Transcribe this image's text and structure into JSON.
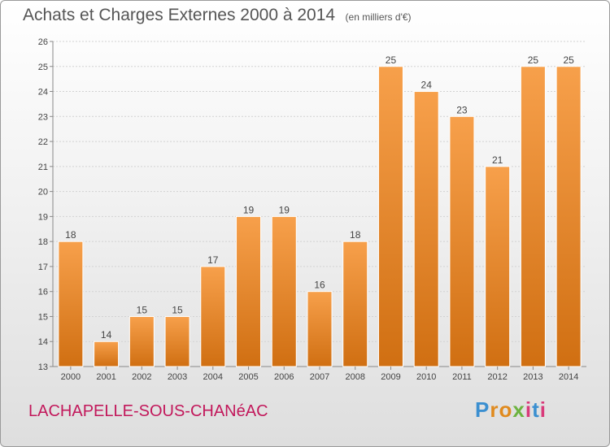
{
  "header": {
    "title": "Achats et Charges Externes 2000 à 2014",
    "subtitle": "(en milliers d'€)"
  },
  "footer": {
    "commune": "LACHAPELLE-SOUS-CHANéAC",
    "logo": "Proxiti"
  },
  "colors": {
    "bar_top": "#f7a04b",
    "bar_bottom": "#d06f12",
    "title": "#555555",
    "commune": "#c2185b"
  },
  "chart_data": {
    "type": "bar",
    "title": "Achats et Charges Externes 2000 à 2014",
    "subtitle": "(en milliers d'€)",
    "categories": [
      "2000",
      "2001",
      "2002",
      "2003",
      "2004",
      "2005",
      "2006",
      "2007",
      "2008",
      "2009",
      "2010",
      "2011",
      "2012",
      "2013",
      "2014"
    ],
    "values": [
      18,
      14,
      15,
      15,
      17,
      19,
      19,
      16,
      18,
      25,
      24,
      23,
      21,
      25,
      25
    ],
    "ylim": [
      13,
      26
    ],
    "yticks": [
      13,
      14,
      15,
      16,
      17,
      18,
      19,
      20,
      21,
      22,
      23,
      24,
      25,
      26
    ],
    "grid": true,
    "data_labels": true
  }
}
